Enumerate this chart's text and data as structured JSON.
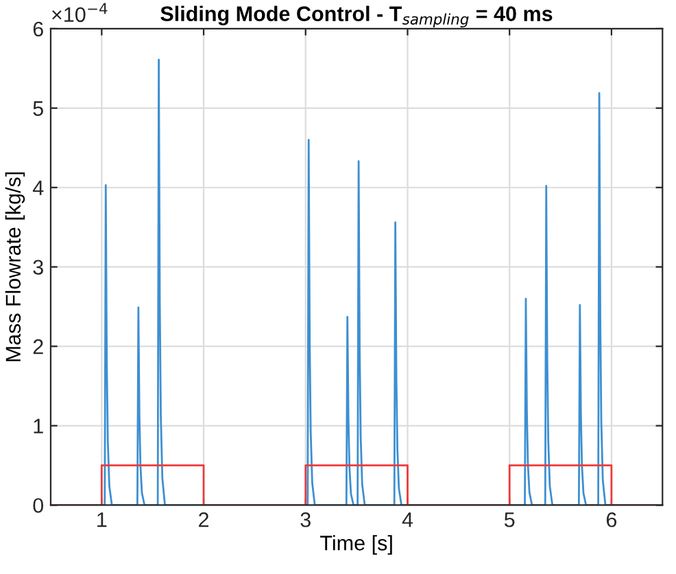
{
  "chart_data": {
    "type": "line",
    "title": "Sliding Mode Control - T$_{sampling}$ = 40 ms",
    "xlabel": "Time [s]",
    "ylabel": "Mass Flowrate [kg/s]",
    "annotations": [
      "×10$^{−4}$"
    ],
    "series": [
      {
        "color": "#3d8fd1",
        "x": [
          0.5,
          1.03,
          1.04,
          1.05,
          1.06,
          1.075,
          1.1,
          1.35,
          1.36,
          1.37,
          1.38,
          1.395,
          1.42,
          1.55,
          1.56,
          1.57,
          1.58,
          1.595,
          1.62,
          3.02,
          3.03,
          3.04,
          3.05,
          3.065,
          3.09,
          3.4,
          3.41,
          3.42,
          3.43,
          3.445,
          3.47,
          3.51,
          3.52,
          3.53,
          3.54,
          3.555,
          3.58,
          3.87,
          3.88,
          3.89,
          3.9,
          3.915,
          3.94,
          5.15,
          5.16,
          5.17,
          5.18,
          5.195,
          5.22,
          5.35,
          5.36,
          5.37,
          5.38,
          5.395,
          5.42,
          5.68,
          5.69,
          5.7,
          5.71,
          5.725,
          5.75,
          5.87,
          5.88,
          5.89,
          5.9,
          5.915,
          5.94,
          6.5
        ],
        "values": [
          0,
          0,
          4.03,
          1.81,
          0.81,
          0.24,
          0,
          0,
          2.49,
          1.12,
          0.5,
          0.15,
          0,
          0,
          5.61,
          2.52,
          1.12,
          0.34,
          0,
          0,
          4.6,
          2.07,
          0.92,
          0.28,
          0,
          0,
          2.37,
          1.07,
          0.47,
          0.14,
          0,
          0,
          4.33,
          1.95,
          0.87,
          0.26,
          0,
          0,
          3.56,
          1.6,
          0.71,
          0.21,
          0,
          0,
          2.6,
          1.17,
          0.52,
          0.16,
          0,
          0,
          4.02,
          1.81,
          0.8,
          0.24,
          0,
          0,
          2.52,
          1.13,
          0.5,
          0.15,
          0,
          0,
          5.19,
          2.34,
          1.04,
          0.31,
          0,
          0
        ]
      },
      {
        "color": "#ec3b3b",
        "x": [
          0.5,
          1,
          1,
          2,
          2,
          3,
          3,
          4,
          4,
          5,
          5,
          6,
          6,
          6.5
        ],
        "values": [
          0,
          0,
          0.5,
          0.5,
          0,
          0,
          0.5,
          0.5,
          0,
          0,
          0.5,
          0.5,
          0,
          0
        ]
      }
    ],
    "xlim": [
      0.5,
      6.5
    ],
    "ylim": [
      0,
      6
    ],
    "xticks": [
      1,
      2,
      3,
      4,
      5,
      6
    ],
    "yticks": [
      0,
      1,
      2,
      3,
      4,
      5,
      6
    ],
    "grid": true,
    "marker": "none",
    "line_style": "solid"
  }
}
